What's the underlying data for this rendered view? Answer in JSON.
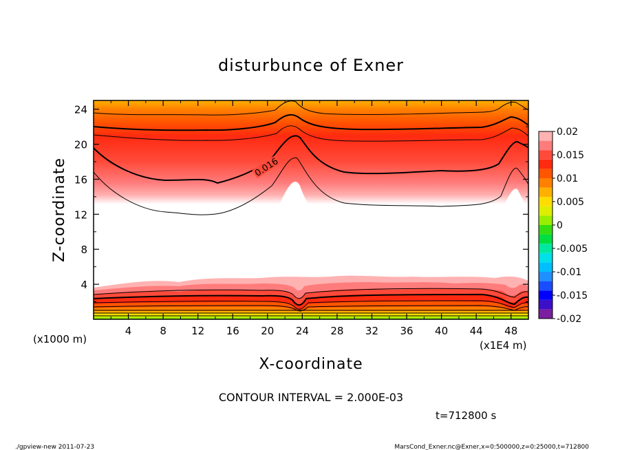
{
  "chart_data": {
    "type": "heatmap",
    "title": "disturbunce of Exner",
    "xlabel": "X-coordinate",
    "ylabel": "Z-coordinate",
    "x_unit_label": "(x1E4 m)",
    "y_unit_label": "(x1000 m)",
    "xlim": [
      0,
      50
    ],
    "ylim": [
      0,
      25
    ],
    "x_ticks": [
      "4",
      "8",
      "12",
      "16",
      "20",
      "24",
      "28",
      "32",
      "36",
      "40",
      "44",
      "48"
    ],
    "y_ticks": [
      "4",
      "8",
      "12",
      "16",
      "20",
      "24"
    ],
    "contour_label": "0.016",
    "colorbar": {
      "labels": [
        "0.02",
        "0.015",
        "0.01",
        "0.005",
        "0",
        "-0.005",
        "-0.01",
        "-0.015",
        "-0.02"
      ],
      "levels": [
        -0.02,
        -0.018,
        -0.016,
        -0.014,
        -0.012,
        -0.01,
        -0.008,
        -0.006,
        -0.004,
        -0.002,
        0,
        0.002,
        0.004,
        0.006,
        0.008,
        0.01,
        0.012,
        0.014,
        0.016,
        0.018,
        0.02
      ],
      "colors": [
        "#7a1fa0",
        "#3c0fc8",
        "#0000ff",
        "#1a4dff",
        "#1e90ff",
        "#00bfff",
        "#00e0e8",
        "#00e8a0",
        "#00dd40",
        "#33dd11",
        "#99ee00",
        "#ddee00",
        "#ffdd00",
        "#ffb000",
        "#ff8000",
        "#ff5500",
        "#ff2a10",
        "#ff4a3a",
        "#ff7c7c",
        "#ffb2b2"
      ]
    },
    "contour_interval": "CONTOUR INTERVAL = 2.000E-03",
    "time_label": "t=712800 s"
  },
  "footer": {
    "left": "./gpview-new   2011-07-23",
    "right": "MarsCond_Exner.nc@Exner,x=0:500000,z=0:25000,t=712800"
  }
}
